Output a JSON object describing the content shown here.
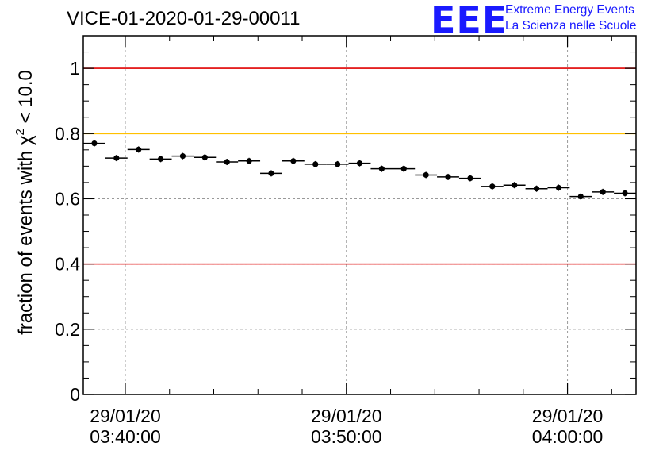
{
  "title": "VICE-01-2020-01-29-00011",
  "logo": {
    "mark": "EEE",
    "line1": "Extreme Energy Events",
    "line2": "La Scienza nelle Scuole",
    "color": "#1a1aff"
  },
  "chart_data": {
    "type": "scatter",
    "ylabel_main": "fraction of events with χ",
    "ylabel_sup": "2",
    "ylabel_tail": " < 10.0",
    "xlim": [
      "2020-01-29T03:38:06",
      "2020-01-29T04:03:06"
    ],
    "ylim": [
      0,
      1.1
    ],
    "yticks": [
      0,
      0.2,
      0.4,
      0.6,
      0.8,
      1
    ],
    "ytick_labels": [
      "0",
      "0.2",
      "0.4",
      "0.6",
      "0.8",
      "1"
    ],
    "xticks": [
      {
        "time": "2020-01-29T03:40:00",
        "date_label": "29/01/20",
        "time_label": "03:40:00"
      },
      {
        "time": "2020-01-29T03:50:00",
        "date_label": "29/01/20",
        "time_label": "03:50:00"
      },
      {
        "time": "2020-01-29T04:00:00",
        "date_label": "29/01/20",
        "time_label": "04:00:00"
      }
    ],
    "grid": true,
    "reference_lines": [
      {
        "y": 1.0,
        "color": "#e00000"
      },
      {
        "y": 0.8,
        "color": "#ffc000"
      },
      {
        "y": 0.4,
        "color": "#e00000"
      }
    ],
    "bin_width_seconds": 60,
    "series": [
      {
        "color": "#000000",
        "x": [
          "2020-01-29T03:38:36",
          "2020-01-29T03:39:36",
          "2020-01-29T03:40:36",
          "2020-01-29T03:41:36",
          "2020-01-29T03:42:36",
          "2020-01-29T03:43:36",
          "2020-01-29T03:44:36",
          "2020-01-29T03:45:36",
          "2020-01-29T03:46:36",
          "2020-01-29T03:47:36",
          "2020-01-29T03:48:36",
          "2020-01-29T03:49:36",
          "2020-01-29T03:50:36",
          "2020-01-29T03:51:36",
          "2020-01-29T03:52:36",
          "2020-01-29T03:53:36",
          "2020-01-29T03:54:36",
          "2020-01-29T03:55:36",
          "2020-01-29T03:56:36",
          "2020-01-29T03:57:36",
          "2020-01-29T03:58:36",
          "2020-01-29T03:59:36",
          "2020-01-29T04:00:36",
          "2020-01-29T04:01:36",
          "2020-01-29T04:02:36"
        ],
        "y": [
          0.77,
          0.725,
          0.751,
          0.722,
          0.731,
          0.727,
          0.713,
          0.716,
          0.678,
          0.716,
          0.706,
          0.706,
          0.709,
          0.692,
          0.692,
          0.673,
          0.667,
          0.663,
          0.638,
          0.642,
          0.631,
          0.634,
          0.607,
          0.621,
          0.617
        ]
      }
    ]
  }
}
